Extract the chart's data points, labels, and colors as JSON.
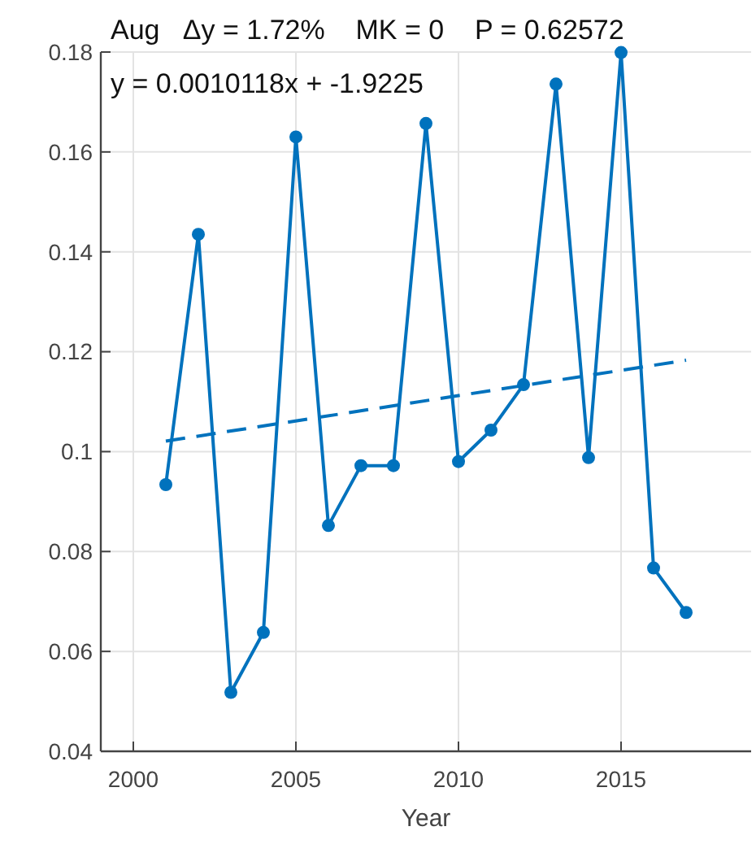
{
  "chart_data": {
    "type": "line",
    "title": "Aug   Δy = 1.72%    MK = 0    P = 0.62572",
    "xlabel": "Year",
    "annotations": [
      "y = 0.0010118x + -1.9225"
    ],
    "x": [
      2001,
      2002,
      2003,
      2004,
      2005,
      2006,
      2007,
      2008,
      2009,
      2010,
      2011,
      2012,
      2013,
      2014,
      2015,
      2016,
      2017
    ],
    "series": [
      {
        "color": "#0072bd",
        "marker": "circle",
        "line_style": "solid",
        "values": [
          0.0934,
          0.1435,
          0.0518,
          0.0638,
          0.163,
          0.0852,
          0.0972,
          0.0972,
          0.1657,
          0.098,
          0.1043,
          0.1134,
          0.1736,
          0.0988,
          0.1799,
          0.0767,
          0.0678
        ]
      },
      {
        "color": "#0072bd",
        "marker": "none",
        "line_style": "dashed",
        "x": [
          2001,
          2017
        ],
        "values": [
          0.1021,
          0.1183
        ]
      }
    ],
    "xlim": [
      1999,
      2019
    ],
    "xticks": [
      2000,
      2005,
      2010,
      2015
    ],
    "ylim": [
      0.04,
      0.18
    ],
    "yticks": [
      0.04,
      0.06,
      0.08,
      0.1,
      0.12,
      0.14,
      0.16,
      0.18
    ],
    "grid": true
  }
}
